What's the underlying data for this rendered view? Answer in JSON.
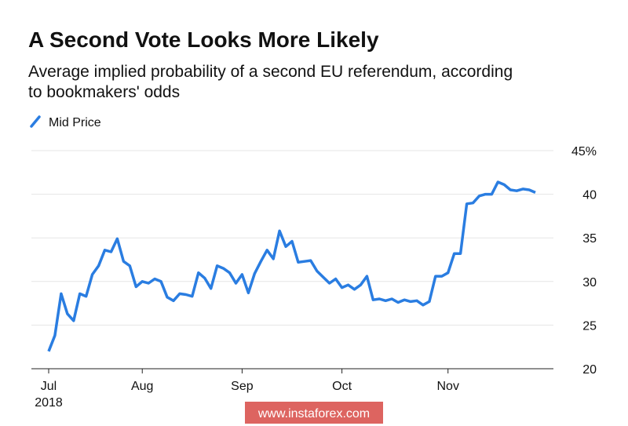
{
  "chart_data": {
    "type": "line",
    "title": "A Second Vote Looks More Likely",
    "subtitle": [
      "Average implied probability of a second EU referendum, according",
      "to bookmakers' odds"
    ],
    "year_label": "2018",
    "watermark": "www.instaforex.com",
    "categories": [
      "Jul",
      null,
      null,
      null,
      null,
      null,
      null,
      null,
      null,
      null,
      null,
      null,
      null,
      null,
      null,
      "Aug",
      null,
      null,
      null,
      null,
      null,
      null,
      null,
      null,
      null,
      null,
      null,
      null,
      null,
      null,
      null,
      "Sep",
      null,
      null,
      null,
      null,
      null,
      null,
      null,
      null,
      null,
      null,
      null,
      null,
      null,
      null,
      null,
      "Oct",
      null,
      null,
      null,
      null,
      null,
      null,
      null,
      null,
      null,
      null,
      null,
      null,
      null,
      null,
      null,
      null,
      "Nov",
      null,
      null,
      null,
      null,
      null,
      null,
      null,
      null,
      null,
      null,
      null,
      null,
      null,
      null
    ],
    "series": [
      {
        "name": "Mid Price",
        "color": "#2a7de1",
        "values": [
          22.0,
          23.8,
          28.6,
          26.3,
          25.5,
          28.6,
          28.3,
          30.8,
          31.8,
          33.6,
          33.4,
          34.9,
          32.3,
          31.8,
          29.4,
          30.0,
          29.8,
          30.3,
          30.0,
          28.2,
          27.8,
          28.6,
          28.5,
          28.3,
          31.0,
          30.4,
          29.2,
          31.8,
          31.5,
          31.0,
          29.8,
          30.8,
          28.7,
          30.9,
          32.3,
          33.6,
          32.6,
          35.8,
          34.0,
          34.6,
          32.2,
          32.3,
          32.4,
          31.2,
          30.5,
          29.8,
          30.3,
          29.3,
          29.6,
          29.1,
          29.6,
          30.6,
          27.9,
          28.0,
          27.8,
          28.0,
          27.6,
          27.9,
          27.7,
          27.8,
          27.3,
          27.7,
          30.6,
          30.6,
          31.0,
          33.2,
          33.2,
          38.9,
          39.0,
          39.8,
          40.0,
          40.0,
          41.4,
          41.1,
          40.5,
          40.4,
          40.6,
          40.5,
          40.2
        ]
      }
    ],
    "ylim": [
      20,
      45
    ],
    "yticks": [
      20,
      25,
      30,
      35,
      40,
      {
        "value": 45,
        "label": "45%"
      }
    ],
    "grid": true,
    "legend": "top-left"
  }
}
